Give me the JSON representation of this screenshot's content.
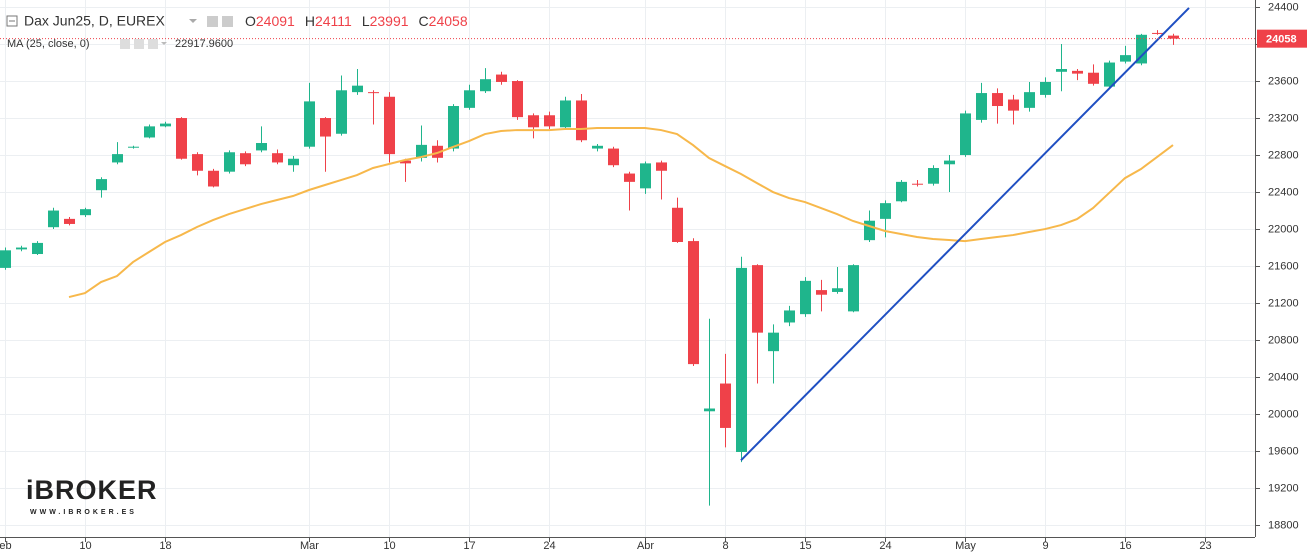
{
  "chart_data": {
    "type": "candlestick",
    "title": "Dax Jun25, D, EUREX",
    "header_labels": {
      "open": "O",
      "high": "H",
      "low": "L",
      "close": "C"
    },
    "categories": [
      "eb",
      null,
      null,
      null,
      null,
      "10",
      null,
      null,
      null,
      null,
      "18",
      null,
      null,
      null,
      null,
      null,
      null,
      null,
      null,
      "Mar",
      null,
      null,
      null,
      null,
      "10",
      null,
      null,
      null,
      null,
      "17",
      null,
      null,
      null,
      null,
      "24",
      null,
      null,
      null,
      null,
      null,
      "Abr",
      null,
      null,
      null,
      null,
      "8",
      null,
      null,
      null,
      null,
      "15",
      null,
      null,
      null,
      null,
      "24",
      null,
      null,
      null,
      null,
      "May",
      null,
      null,
      null,
      null,
      "9",
      null,
      null,
      null,
      null,
      "16",
      null,
      null,
      null,
      null,
      "23"
    ],
    "open": [
      21580,
      21780,
      21730,
      22020,
      22110,
      22150,
      22420,
      22720,
      22880,
      22990,
      23110,
      23200,
      22810,
      22630,
      22620,
      22820,
      22850,
      22820,
      22690,
      22890,
      23200,
      23030,
      23480,
      23480,
      23430,
      22740,
      22770,
      22900,
      22870,
      23310,
      23490,
      23670,
      23600,
      23230,
      23230,
      23100,
      23390,
      22870,
      22870,
      22600,
      22440,
      22720,
      22230,
      21870,
      20030,
      20330,
      19590,
      21610,
      20680,
      20990,
      21080,
      21340,
      21320,
      21110,
      21880,
      22110,
      22300,
      22490,
      22490,
      22700,
      22800,
      23180,
      23470,
      23400,
      23310,
      23450,
      23700,
      23710,
      23690,
      23540,
      23810,
      23790,
      24120,
      24091,
      null,
      null
    ],
    "high": [
      21800,
      21820,
      21870,
      22230,
      22130,
      22230,
      22560,
      22940,
      22900,
      23130,
      23160,
      23210,
      22830,
      22650,
      22850,
      22840,
      23110,
      22860,
      22790,
      23580,
      23210,
      23660,
      23730,
      23500,
      23480,
      22760,
      23120,
      22960,
      23350,
      23560,
      23740,
      23700,
      23610,
      23250,
      23270,
      23430,
      23460,
      22920,
      22890,
      22620,
      22730,
      22740,
      22340,
      21900,
      21030,
      20650,
      21700,
      21620,
      20970,
      21170,
      21480,
      21450,
      21590,
      21620,
      22200,
      22310,
      22530,
      22530,
      22690,
      22800,
      23280,
      23580,
      23520,
      23450,
      23590,
      23640,
      24000,
      23730,
      23780,
      23820,
      23980,
      24110,
      24150,
      24111,
      null,
      null
    ],
    "low": [
      21560,
      21760,
      21720,
      22000,
      22040,
      22130,
      22340,
      22700,
      22870,
      22980,
      23100,
      22750,
      22580,
      22450,
      22600,
      22680,
      22830,
      22700,
      22620,
      22870,
      22620,
      23010,
      23450,
      23130,
      22720,
      22510,
      22730,
      22720,
      22840,
      23290,
      23470,
      23560,
      23180,
      22980,
      23080,
      23080,
      22940,
      22840,
      22670,
      22200,
      22380,
      22320,
      21850,
      20520,
      19010,
      19640,
      19480,
      20330,
      20330,
      20950,
      21050,
      21110,
      21300,
      21100,
      21860,
      21910,
      22290,
      22460,
      22470,
      22400,
      22780,
      23150,
      23140,
      23130,
      23270,
      23420,
      23490,
      23610,
      23550,
      23520,
      23790,
      23770,
      24100,
      23991,
      null,
      null
    ],
    "close": [
      21770,
      21800,
      21850,
      22200,
      22055,
      22215,
      22540,
      22810,
      22890,
      23110,
      23140,
      22760,
      22630,
      22460,
      22830,
      22700,
      22930,
      22720,
      22760,
      23380,
      23000,
      23500,
      23550,
      23470,
      22810,
      22710,
      22910,
      22770,
      23330,
      23500,
      23620,
      23590,
      23210,
      23100,
      23110,
      23390,
      22960,
      22900,
      22690,
      22510,
      22710,
      22630,
      21860,
      20540,
      20060,
      19850,
      21580,
      20880,
      20880,
      21120,
      21440,
      21290,
      21360,
      21610,
      22090,
      22280,
      22510,
      22480,
      22660,
      22740,
      23250,
      23470,
      23330,
      23280,
      23480,
      23590,
      23730,
      23680,
      23570,
      23800,
      23880,
      24100,
      24110,
      24058,
      null,
      null
    ],
    "up_color": "#1fb58c",
    "down_color": "#ef4149",
    "ma": {
      "name": "MA (25, close, 0)",
      "color": "#f7b84b",
      "value_label": "22917.9600",
      "values": [
        null,
        null,
        null,
        null,
        21265,
        21308,
        21427,
        21492,
        21643,
        21752,
        21860,
        21935,
        22022,
        22097,
        22162,
        22216,
        22270,
        22314,
        22357,
        22422,
        22476,
        22530,
        22584,
        22660,
        22703,
        22746,
        22778,
        22822,
        22887,
        22951,
        23027,
        23060,
        23070,
        23070,
        23070,
        23081,
        23081,
        23092,
        23092,
        23092,
        23092,
        23070,
        23027,
        22908,
        22768,
        22681,
        22595,
        22497,
        22400,
        22335,
        22292,
        22227,
        22162,
        22087,
        22033,
        21979,
        21946,
        21914,
        21892,
        21881,
        21870,
        21892,
        21914,
        21935,
        21968,
        22000,
        22043,
        22108,
        22227,
        22389,
        22551,
        22649,
        22778,
        22908,
        null,
        null
      ]
    },
    "trendline": {
      "color": "#1f4fc2",
      "start_index": 46,
      "start_value": 19500,
      "end_index": 74,
      "end_value": 24390
    },
    "ylim": [
      18671,
      24476
    ],
    "yticks": [
      18800,
      19200,
      19600,
      20000,
      20400,
      20800,
      21200,
      21600,
      22000,
      22400,
      22800,
      23200,
      23600,
      24000,
      24400
    ],
    "grid": true,
    "watermark": {
      "name": "iBROKER",
      "url": "WWW.IBROKER.ES"
    }
  }
}
